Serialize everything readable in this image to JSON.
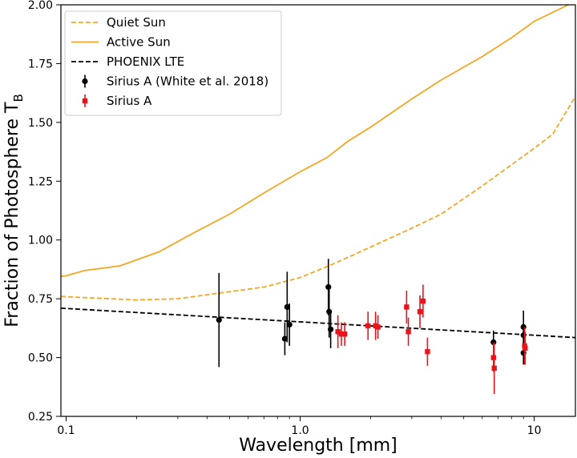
{
  "chart_data": {
    "type": "scatter",
    "title": "",
    "xlabel": "Wavelength [mm]",
    "ylabel": "Fraction of Photosphere T",
    "ylabel_subscript": "B",
    "xscale": "log",
    "xlim": [
      0.095,
      15
    ],
    "ylim": [
      0.25,
      2.0
    ],
    "xticks": [
      0.1,
      1.0,
      10
    ],
    "xtick_labels": [
      "0.1",
      "1.0",
      "10"
    ],
    "yticks": [
      0.25,
      0.5,
      0.75,
      1.0,
      1.25,
      1.5,
      1.75,
      2.0
    ],
    "ytick_labels": [
      "0.25",
      "0.50",
      "0.75",
      "1.00",
      "1.25",
      "1.50",
      "1.75",
      "2.00"
    ],
    "legend_position": "top-left",
    "grid": false,
    "lines": [
      {
        "name": "Quiet Sun",
        "color": "#f5a623",
        "style": "dashed",
        "x": [
          0.095,
          0.12,
          0.2,
          0.3,
          0.5,
          0.7,
          1.0,
          1.4,
          2.0,
          3.0,
          4.0,
          6.0,
          8.0,
          10.0,
          12.0,
          15.0
        ],
        "y": [
          0.76,
          0.755,
          0.745,
          0.75,
          0.78,
          0.8,
          0.84,
          0.9,
          0.97,
          1.05,
          1.11,
          1.23,
          1.32,
          1.39,
          1.45,
          1.61
        ]
      },
      {
        "name": "Active Sun",
        "color": "#f5a623",
        "style": "solid",
        "x": [
          0.095,
          0.1,
          0.12,
          0.17,
          0.25,
          0.35,
          0.5,
          0.7,
          1.0,
          1.3,
          1.6,
          2.0,
          3.0,
          4.0,
          6.0,
          8.0,
          10.0,
          14.0
        ],
        "y": [
          0.845,
          0.848,
          0.87,
          0.89,
          0.95,
          1.03,
          1.11,
          1.2,
          1.29,
          1.35,
          1.42,
          1.48,
          1.6,
          1.68,
          1.78,
          1.86,
          1.93,
          2.0
        ]
      },
      {
        "name": "PHOENIX  LTE",
        "color": "#000000",
        "style": "dashed",
        "x": [
          0.095,
          15.0
        ],
        "y": [
          0.71,
          0.585
        ]
      }
    ],
    "series": [
      {
        "name": "Sirius A (White et al. 2018)",
        "color": "#000000",
        "marker": "circle",
        "points": [
          {
            "x": 0.45,
            "y": 0.66,
            "err": 0.2
          },
          {
            "x": 0.86,
            "y": 0.58,
            "err": 0.07
          },
          {
            "x": 0.88,
            "y": 0.715,
            "err": 0.15
          },
          {
            "x": 0.9,
            "y": 0.64,
            "err": 0.09
          },
          {
            "x": 1.32,
            "y": 0.8,
            "err": 0.12
          },
          {
            "x": 1.33,
            "y": 0.695,
            "err": 0.11
          },
          {
            "x": 1.35,
            "y": 0.62,
            "err": 0.08
          },
          {
            "x": 6.7,
            "y": 0.565,
            "err": 0.05
          },
          {
            "x": 9.0,
            "y": 0.63,
            "err": 0.07
          },
          {
            "x": 9.0,
            "y": 0.595,
            "err": 0.05
          },
          {
            "x": 9.0,
            "y": 0.52,
            "err": 0.05
          }
        ]
      },
      {
        "name": "Sirius A",
        "color": "#e8141c",
        "marker": "square",
        "points": [
          {
            "x": 1.45,
            "y": 0.61,
            "err": 0.07
          },
          {
            "x": 1.5,
            "y": 0.6,
            "err": 0.05
          },
          {
            "x": 1.55,
            "y": 0.6,
            "err": 0.05
          },
          {
            "x": 1.95,
            "y": 0.635,
            "err": 0.06
          },
          {
            "x": 2.1,
            "y": 0.635,
            "err": 0.06
          },
          {
            "x": 2.15,
            "y": 0.63,
            "err": 0.05
          },
          {
            "x": 2.85,
            "y": 0.715,
            "err": 0.07
          },
          {
            "x": 2.9,
            "y": 0.61,
            "err": 0.06
          },
          {
            "x": 3.25,
            "y": 0.695,
            "err": 0.07
          },
          {
            "x": 3.35,
            "y": 0.74,
            "err": 0.07
          },
          {
            "x": 3.5,
            "y": 0.525,
            "err": 0.06
          },
          {
            "x": 6.7,
            "y": 0.5,
            "err": 0.06
          },
          {
            "x": 6.75,
            "y": 0.455,
            "err": 0.11
          },
          {
            "x": 9.1,
            "y": 0.55,
            "err": 0.08
          },
          {
            "x": 9.15,
            "y": 0.54,
            "err": 0.07
          }
        ]
      }
    ]
  }
}
